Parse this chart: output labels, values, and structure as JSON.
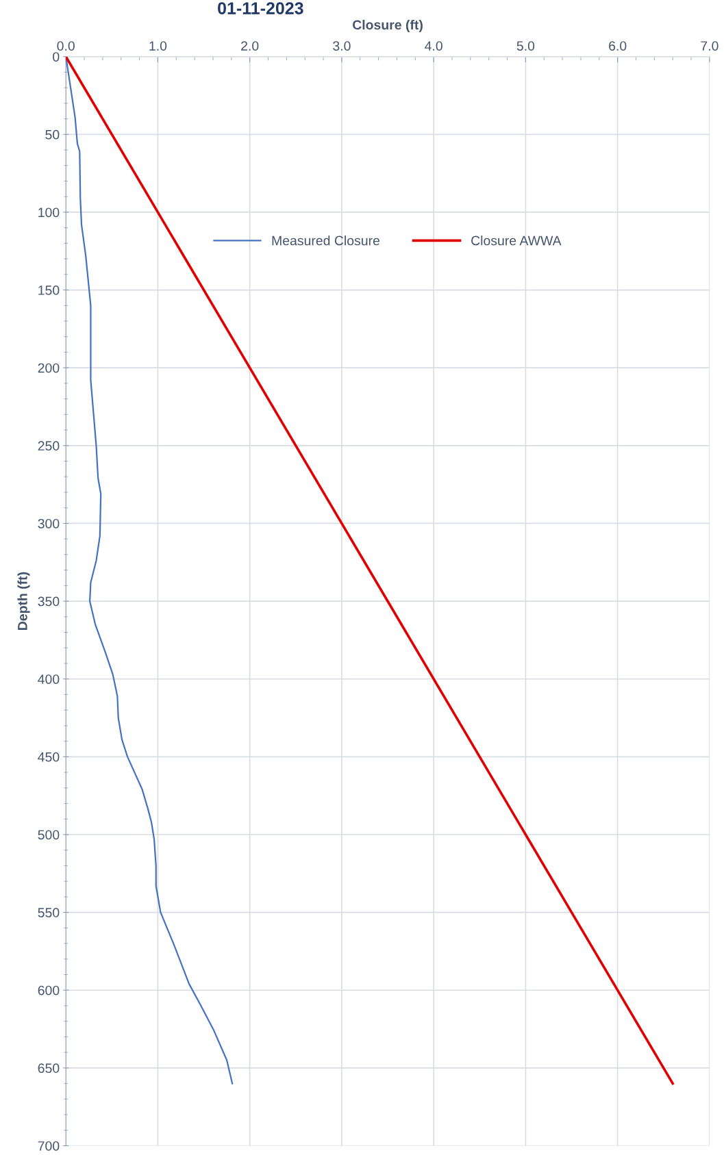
{
  "chart_data": {
    "type": "line",
    "title": "01-11-2023",
    "xlabel": "Closure (ft)",
    "ylabel": "Depth (ft)",
    "xlim": [
      0,
      7
    ],
    "xticks": [
      {
        "value": 0,
        "label": "0.0"
      },
      {
        "value": 1,
        "label": "1.0"
      },
      {
        "value": 2,
        "label": "2.0"
      },
      {
        "value": 3,
        "label": "3.0"
      },
      {
        "value": 4,
        "label": "4.0"
      },
      {
        "value": 5,
        "label": "5.0"
      },
      {
        "value": 6,
        "label": "6.0"
      },
      {
        "value": 7,
        "label": "7.0"
      }
    ],
    "ylim": [
      700,
      0
    ],
    "yticks": [
      0,
      50,
      100,
      150,
      200,
      250,
      300,
      350,
      400,
      450,
      500,
      550,
      600,
      650,
      700
    ],
    "grid": true,
    "legend": "top",
    "marker": "none",
    "line_style": "solid",
    "series": [
      {
        "name": "Measured Closure",
        "color": "#4472c4",
        "x": [
          0,
          0.1,
          0.125,
          0.15,
          0.157,
          0.17,
          0.216,
          0.27,
          0.27,
          0.29,
          0.33,
          0.35,
          0.38,
          0.37,
          0.33,
          0.27,
          0.26,
          0.32,
          0.43,
          0.51,
          0.56,
          0.57,
          0.61,
          0.67,
          0.83,
          0.89,
          0.93,
          0.96,
          0.98,
          0.98,
          1.03,
          1.17,
          1.34,
          1.46,
          1.61,
          1.75,
          1.81
        ],
        "values": [
          0,
          39,
          56,
          61,
          91,
          108,
          128,
          160,
          208,
          222,
          250,
          271,
          281,
          308,
          324,
          338,
          350,
          365,
          383,
          397,
          411,
          425,
          439,
          450,
          471,
          483,
          492,
          503,
          520,
          533,
          550,
          570,
          596,
          609,
          626,
          645,
          660
        ]
      },
      {
        "name": "Closure AWWA",
        "color": "#e00000",
        "x": [
          0,
          6.6
        ],
        "values": [
          0,
          660
        ]
      }
    ]
  }
}
